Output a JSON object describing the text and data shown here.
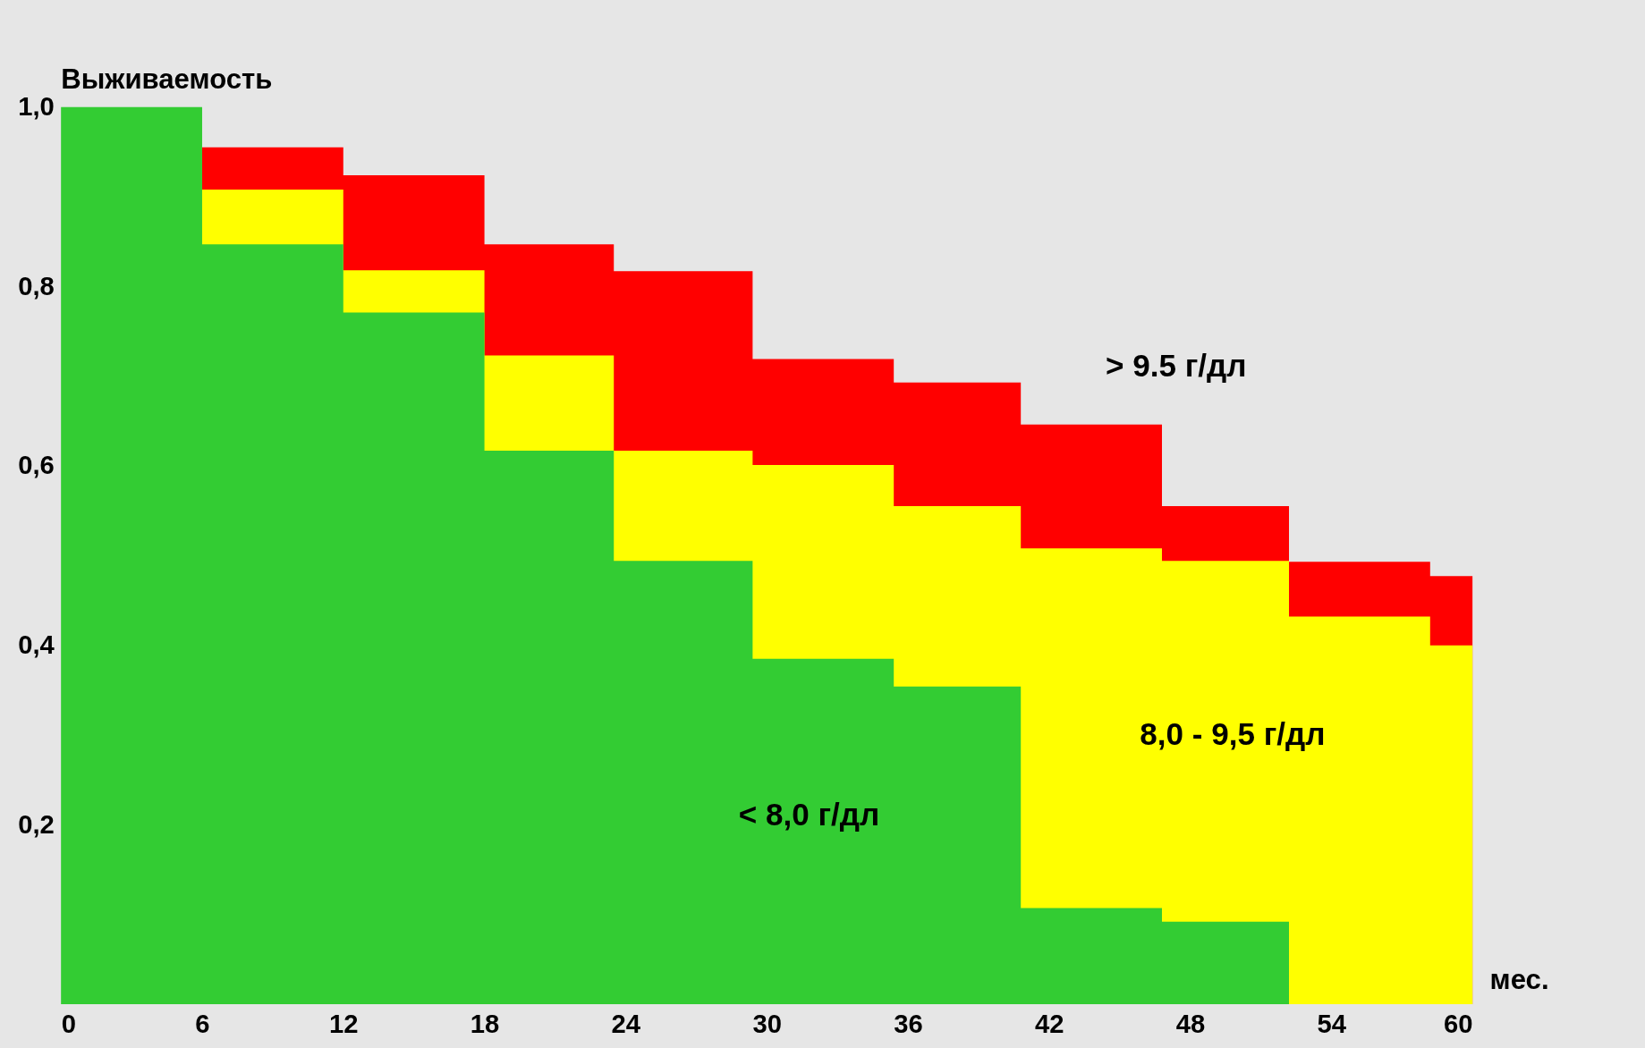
{
  "chart_data": {
    "type": "area",
    "xlabel": "мес.",
    "ylabel": "Выживаемость",
    "xlim": [
      0,
      60
    ],
    "xticks": [
      0,
      6,
      12,
      18,
      24,
      30,
      36,
      42,
      48,
      54,
      60
    ],
    "ylim": [
      0,
      1.0
    ],
    "yticks": [
      {
        "value": 0.2,
        "label": "0,2"
      },
      {
        "value": 0.4,
        "label": "0,4"
      },
      {
        "value": 0.6,
        "label": "0,6"
      },
      {
        "value": 0.8,
        "label": "0,8"
      },
      {
        "value": 1.0,
        "label": "1,0"
      }
    ],
    "grid": false,
    "series": [
      {
        "name": "> 9.5 г/дл",
        "color": "#ff0000",
        "x": [
          6,
          12,
          18,
          23.5,
          29.4,
          35.4,
          40.8,
          46.8,
          52.2,
          58.2,
          60
        ],
        "values": [
          0.955,
          0.924,
          0.847,
          0.817,
          0.719,
          0.693,
          0.646,
          0.555,
          0.493,
          0.477,
          0.477
        ]
      },
      {
        "name": "8,0 -  9,5 г/дл",
        "color": "#ffff00",
        "x": [
          6,
          12,
          18,
          23.5,
          29.4,
          35.4,
          40.8,
          46.8,
          52.2,
          58.2,
          60
        ],
        "values": [
          0.908,
          0.818,
          0.723,
          0.617,
          0.601,
          0.555,
          0.508,
          0.494,
          0.432,
          0.4,
          0.4
        ]
      },
      {
        "name": "< 8,0 г/дл",
        "color": "#33cc33",
        "x": [
          0,
          6,
          12,
          18,
          23.5,
          29.4,
          35.4,
          40.8,
          46.8,
          52.2
        ],
        "values": [
          1.0,
          0.847,
          0.771,
          0.617,
          0.494,
          0.385,
          0.354,
          0.107,
          0.092,
          0
        ]
      }
    ]
  }
}
